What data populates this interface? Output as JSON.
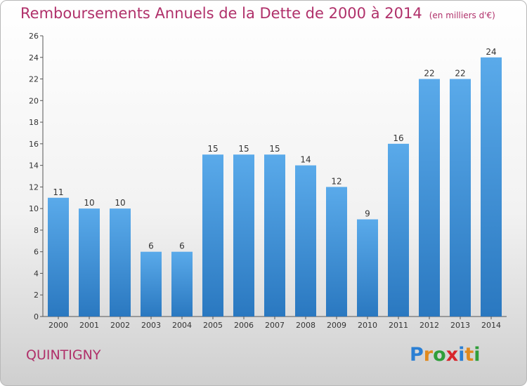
{
  "chart_data": {
    "type": "bar",
    "title": "Remboursements Annuels de la Dette de 2000 à 2014",
    "subtitle": "(en milliers d'€)",
    "xlabel": "",
    "ylabel": "",
    "categories": [
      "2000",
      "2001",
      "2002",
      "2003",
      "2004",
      "2005",
      "2006",
      "2007",
      "2008",
      "2009",
      "2010",
      "2011",
      "2012",
      "2013",
      "2014"
    ],
    "values": [
      11,
      10,
      10,
      6,
      6,
      15,
      15,
      15,
      14,
      12,
      9,
      16,
      22,
      22,
      24
    ],
    "ylim": [
      0,
      26
    ],
    "yticks": [
      0,
      2,
      4,
      6,
      8,
      10,
      12,
      14,
      16,
      18,
      20,
      22,
      24,
      26
    ],
    "grid": false,
    "legend": "none",
    "colors": {
      "bar": "#3d8fd8",
      "title": "#b0306a"
    }
  },
  "commune": "QUINTIGNY",
  "logo": {
    "letters": [
      "P",
      "r",
      "o",
      "x",
      "i",
      "t",
      "i"
    ],
    "colors": [
      "#2a7fd4",
      "#e08a1e",
      "#2f9e3a",
      "#d8262c",
      "#2a7fd4",
      "#e08a1e",
      "#2f9e3a"
    ]
  }
}
